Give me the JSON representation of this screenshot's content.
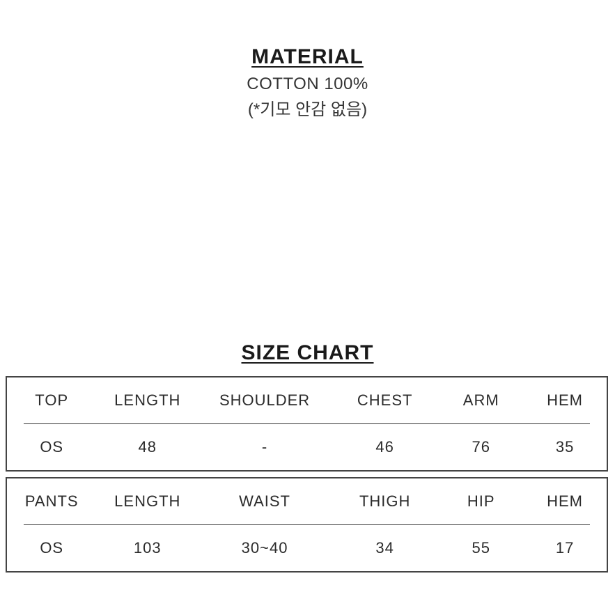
{
  "material": {
    "title": "MATERIAL",
    "line1": "COTTON 100%",
    "line2": "(*기모 안감 없음)"
  },
  "sizeChart": {
    "title": "SIZE CHART",
    "tables": [
      {
        "columns": [
          "TOP",
          "LENGTH",
          "SHOULDER",
          "CHEST",
          "ARM",
          "HEM"
        ],
        "rows": [
          [
            "OS",
            "48",
            "-",
            "46",
            "76",
            "35"
          ]
        ]
      },
      {
        "columns": [
          "PANTS",
          "LENGTH",
          "WAIST",
          "THIGH",
          "HIP",
          "HEM"
        ],
        "rows": [
          [
            "OS",
            "103",
            "30~40",
            "34",
            "55",
            "17"
          ]
        ]
      }
    ]
  },
  "style": {
    "background_color": "#ffffff",
    "text_color": "#1a1a1a",
    "border_color": "#444444",
    "rule_color": "#333333",
    "title_fontsize_pt": 22,
    "body_fontsize_pt": 17,
    "column_widths_pct": [
      15,
      17,
      22,
      18,
      14,
      14
    ]
  }
}
